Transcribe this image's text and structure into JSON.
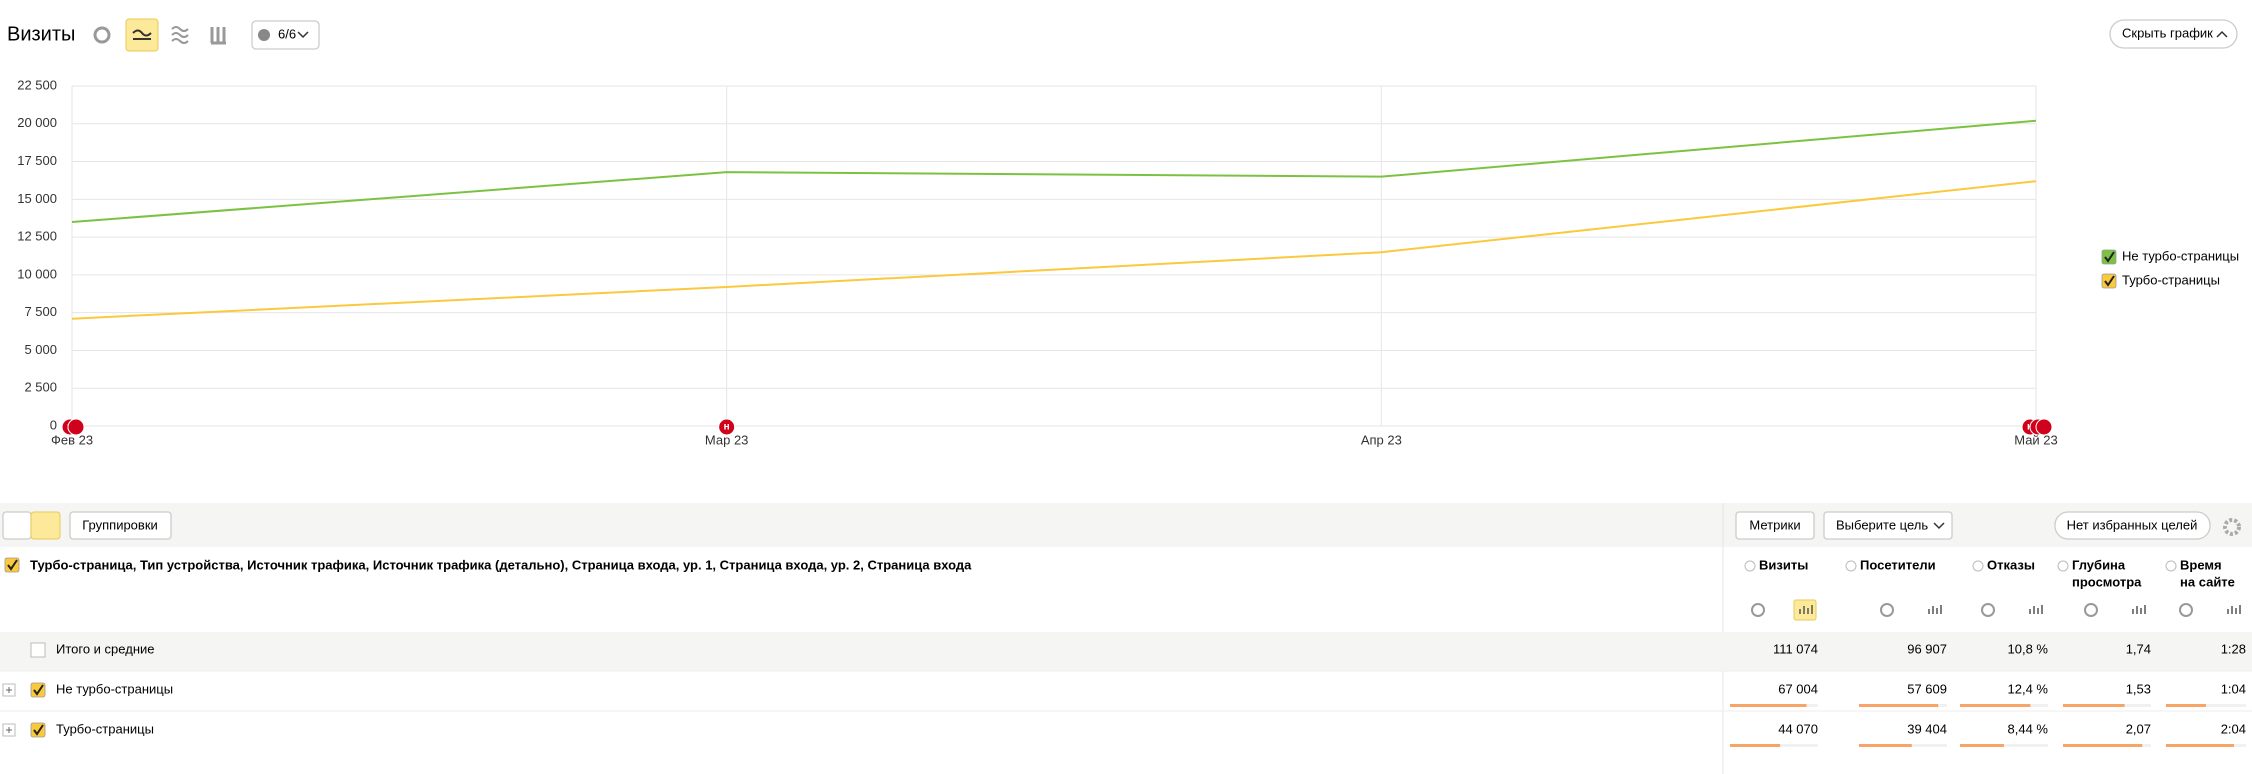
{
  "header": {
    "title": "Визиты",
    "counter": "6/6",
    "hide_button": "Скрыть график"
  },
  "chart_data": {
    "type": "line",
    "categories": [
      "Фев 23",
      "Мар 23",
      "Апр 23",
      "Май 23"
    ],
    "series": [
      {
        "name": "Не турбо-страницы",
        "color": "#7cc242",
        "values": [
          13500,
          16800,
          16500,
          20200
        ]
      },
      {
        "name": "Турбо-страницы",
        "color": "#fbc93d",
        "values": [
          7100,
          9200,
          11500,
          16200
        ]
      }
    ],
    "ylim": [
      0,
      22500
    ],
    "yticks": [
      0,
      {
        "value": 2500,
        "label": "2 500"
      },
      {
        "value": 5000,
        "label": "5 000"
      },
      {
        "value": 7500,
        "label": "7 500"
      },
      {
        "value": 10000,
        "label": "10 000"
      },
      {
        "value": 12500,
        "label": "12 500"
      },
      {
        "value": 15000,
        "label": "15 000"
      },
      {
        "value": 17500,
        "label": "17 500"
      },
      {
        "value": 20000,
        "label": "20 000"
      },
      {
        "value": 22500,
        "label": "22 500"
      }
    ],
    "grid": true,
    "legend": "right",
    "annotation": "н"
  },
  "toolbar": {
    "groupings": "Группировки",
    "metrics": "Метрики",
    "goal": "Выберите цель",
    "favorites": "Нет избранных целей"
  },
  "table": {
    "grouping": "Турбо-страница, Тип устройства, Источник трафика, Источник трафика (детально), Страница входа, ур. 1, Страница входа, ур. 2, Страница входа",
    "columns": [
      [
        "Визиты"
      ],
      [
        "Посетители"
      ],
      [
        "Отказы"
      ],
      [
        "Глубина",
        "просмотра"
      ],
      [
        "Время",
        "на сайте"
      ]
    ],
    "rows": [
      [
        "Итого и средние",
        "111 074",
        "96 907",
        "10,8 %",
        "1,74",
        "1:28"
      ],
      [
        "Не турбо-страницы",
        "67 004",
        "57 609",
        "12,4 %",
        "1,53",
        "1:04"
      ],
      [
        "Турбо-страницы",
        "44 070",
        "39 404",
        "8,44 %",
        "2,07",
        "2:04"
      ]
    ]
  }
}
